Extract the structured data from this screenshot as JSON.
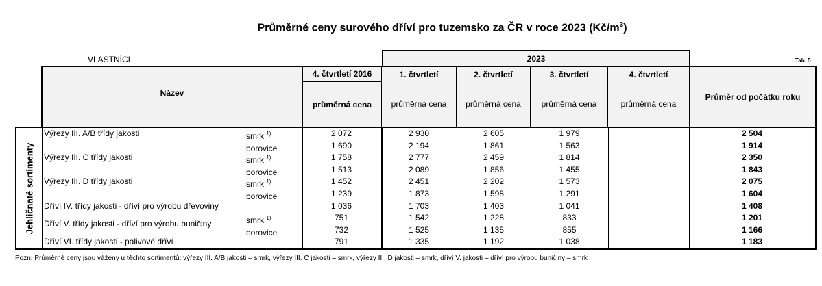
{
  "title": {
    "text": "Průměrné ceny surového dříví pro tuzemsko za ČR v roce 2023 (Kč/m",
    "sup": "3",
    "close": ")"
  },
  "owner": "VLASTNÍCI",
  "table_label": "Tab. 5",
  "header": {
    "name": "Název",
    "year_group": "2023",
    "col2016": "4. čtvrtletí 2016",
    "quarters": [
      "1. čtvrtletí",
      "2. čtvrtletí",
      "3. čtvrtletí",
      "4. čtvrtletí"
    ],
    "sub": "průměrná cena",
    "average": "Průměr od počátku roku"
  },
  "side_label": "Jehličnaté sortimenty",
  "groups": [
    {
      "name": "Výřezy III. A/B třídy jakosti",
      "start": 0,
      "span": 1
    },
    {
      "name": "Výřezy III. C třídy jakosti",
      "start": 2,
      "span": 1
    },
    {
      "name": "Výřezy III. D třídy jakosti",
      "start": 4,
      "span": 1
    },
    {
      "name": "Dříví IV. třídy jakosti - dříví pro výrobu dřevoviny",
      "start": 6,
      "span": 1
    },
    {
      "name": "Dříví V. třídy jakosti - dříví pro výrobu buničiny",
      "start": 7,
      "span": 2
    },
    {
      "name": "Dříví VI. třídy jakosti - palivové dříví",
      "start": 9,
      "span": 1
    }
  ],
  "rows": [
    {
      "species": "smrk",
      "sup": "1)",
      "values": [
        "2 072",
        "2 930",
        "2 605",
        "1 979",
        "",
        "2 504"
      ]
    },
    {
      "species": "borovice",
      "sup": "",
      "values": [
        "1 690",
        "2 194",
        "1 861",
        "1 563",
        "",
        "1 914"
      ]
    },
    {
      "species": "smrk",
      "sup": "1)",
      "values": [
        "1 758",
        "2 777",
        "2 459",
        "1 814",
        "",
        "2 350"
      ]
    },
    {
      "species": "borovice",
      "sup": "",
      "values": [
        "1 513",
        "2 089",
        "1 856",
        "1 455",
        "",
        "1 843"
      ]
    },
    {
      "species": "smrk",
      "sup": "1)",
      "values": [
        "1 452",
        "2 451",
        "2 202",
        "1 573",
        "",
        "2 075"
      ]
    },
    {
      "species": "borovice",
      "sup": "",
      "values": [
        "1 239",
        "1 873",
        "1 598",
        "1 291",
        "",
        "1 604"
      ]
    },
    {
      "species": "",
      "sup": "",
      "values": [
        "1 036",
        "1 703",
        "1 403",
        "1 041",
        "",
        "1 408"
      ]
    },
    {
      "species": "smrk",
      "sup": "1)",
      "values": [
        "751",
        "1 542",
        "1 228",
        "833",
        "",
        "1 201"
      ]
    },
    {
      "species": "borovice",
      "sup": "",
      "values": [
        "732",
        "1 525",
        "1 135",
        "855",
        "",
        "1 166"
      ]
    },
    {
      "species": "",
      "sup": "",
      "values": [
        "791",
        "1 335",
        "1 192",
        "1 038",
        "",
        "1 183"
      ]
    }
  ],
  "note": "Pozn: Průměrné ceny  jsou váženy u těchto sortimentů: výřezy III. A/B jakosti – smrk, výřezy III. C jakosti – smrk, výřezy III. D jakosti – smrk, dříví V. jakosti – dříví pro výrobu buničiny – smrk"
}
